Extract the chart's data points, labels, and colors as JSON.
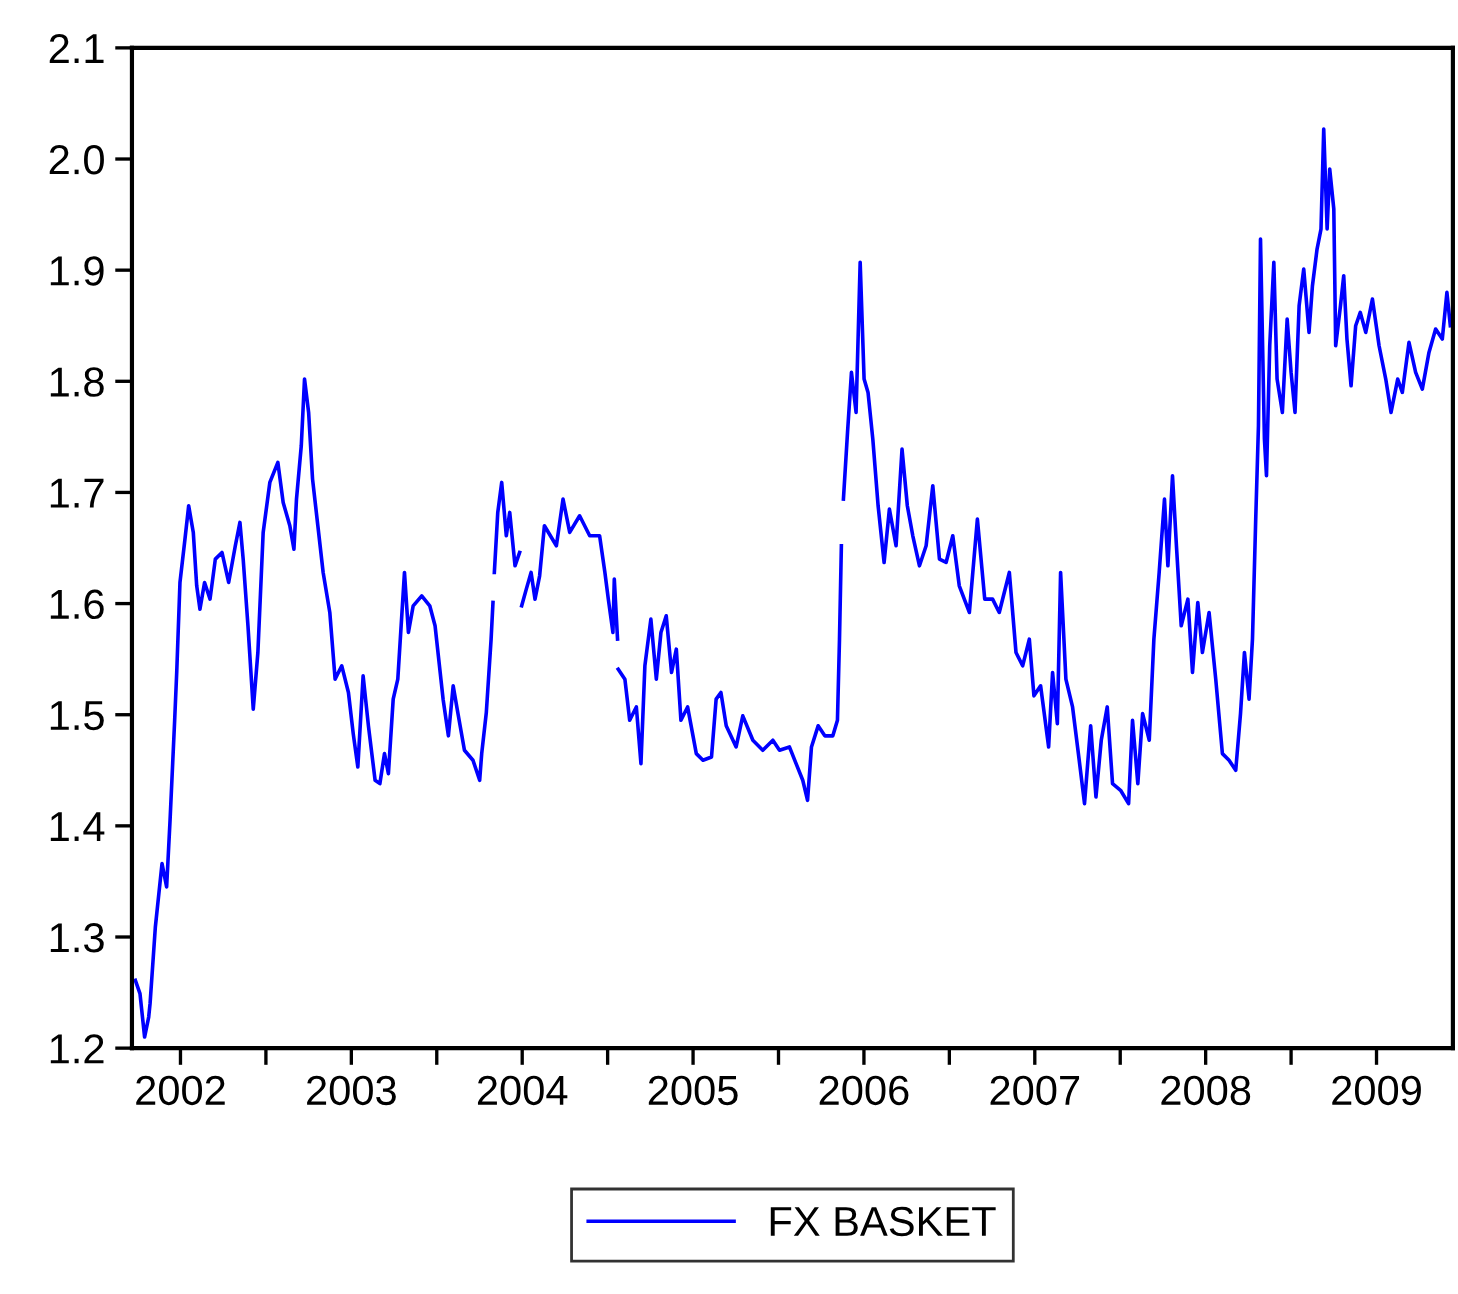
{
  "chart_data": {
    "type": "line",
    "series": [
      {
        "name": "FX BASKET",
        "color": "#0000ff",
        "x": [
          2002.236,
          2002.263,
          2002.29,
          2002.314,
          2002.322,
          2002.353,
          2002.392,
          2002.419,
          2002.439,
          2002.466,
          2002.478,
          2002.497,
          2002.524,
          2002.548,
          2002.575,
          2002.595,
          2002.614,
          2002.641,
          2002.673,
          2002.704,
          2002.743,
          2002.782,
          2002.821,
          2002.848,
          2002.867,
          2002.895,
          2002.926,
          2002.953,
          2002.984,
          2003.023,
          2003.07,
          2003.101,
          2003.14,
          2003.164,
          2003.179,
          2003.207,
          2003.226,
          2003.25,
          2003.273,
          2003.304,
          2003.335,
          2003.374,
          2003.405,
          2003.444,
          2003.483,
          2003.511,
          2003.538,
          2003.569,
          2003.6,
          2003.639,
          2003.667,
          2003.694,
          2003.717,
          2003.745,
          2003.772,
          2003.811,
          2003.834,
          2003.862,
          2003.912,
          2003.959,
          2003.99,
          2004.037,
          2004.068,
          2004.096,
          2004.123,
          2004.162,
          2004.212,
          2004.251,
          2004.263,
          2004.29,
          2004.318,
          2004.329,
          2004.333,
          2004.337,
          2004.357,
          2004.38,
          2004.407,
          2004.427,
          2004.458,
          2004.485,
          2004.491,
          2004.497,
          2004.524,
          2004.552,
          2004.575,
          2004.602,
          2004.63,
          2004.7,
          2004.739,
          2004.778,
          2004.836,
          2004.895,
          2004.953,
          2004.984,
          2005.004,
          2005.031,
          2005.039,
          2005.058,
          2005.06,
          2005.062,
          2005.101,
          2005.129,
          2005.168,
          2005.195,
          2005.218,
          2005.253,
          2005.285,
          2005.312,
          2005.343,
          2005.374,
          2005.402,
          2005.429,
          2005.468,
          2005.519,
          2005.558,
          2005.608,
          2005.635,
          2005.663,
          2005.694,
          2005.752,
          2005.791,
          2005.85,
          2005.908,
          2005.967,
          2006.006,
          2006.064,
          2006.103,
          2006.142,
          2006.17,
          2006.193,
          2006.232,
          2006.271,
          2006.318,
          2006.345,
          2006.357,
          2006.368,
          2006.374,
          2006.38,
          2006.404,
          2006.427,
          2006.454,
          2006.478,
          2006.501,
          2006.524,
          2006.552,
          2006.583,
          2006.618,
          2006.649,
          2006.688,
          2006.723,
          2006.754,
          2006.786,
          2006.825,
          2006.864,
          2006.903,
          2006.942,
          2006.981,
          2007.02,
          2007.058,
          2007.117,
          2007.164,
          2007.207,
          2007.253,
          2007.292,
          2007.351,
          2007.39,
          2007.429,
          2007.468,
          2007.495,
          2007.534,
          2007.581,
          2007.604,
          2007.632,
          2007.651,
          2007.682,
          2007.721,
          2007.76,
          2007.791,
          2007.827,
          2007.858,
          2007.889,
          2007.924,
          2007.955,
          2008.002,
          2008.049,
          2008.072,
          2008.103,
          2008.131,
          2008.17,
          2008.197,
          2008.228,
          2008.259,
          2008.279,
          2008.306,
          2008.329,
          2008.357,
          2008.396,
          2008.423,
          2008.454,
          2008.481,
          2008.52,
          2008.559,
          2008.598,
          2008.637,
          2008.676,
          2008.704,
          2008.727,
          2008.754,
          2008.774,
          2008.793,
          2008.809,
          2008.821,
          2008.844,
          2008.856,
          2008.875,
          2008.899,
          2008.918,
          2008.949,
          2008.977,
          2009.0,
          2009.023,
          2009.047,
          2009.074,
          2009.105,
          2009.125,
          2009.152,
          2009.175,
          2009.191,
          2009.211,
          2009.226,
          2009.25,
          2009.261,
          2009.289,
          2009.308,
          2009.327,
          2009.351,
          2009.378,
          2009.405,
          2009.437,
          2009.476,
          2009.515,
          2009.554,
          2009.585,
          2009.624,
          2009.651,
          2009.69,
          2009.729,
          2009.768,
          2009.807,
          2009.846,
          2009.885,
          2009.912,
          2009.932
        ],
        "values": [
          1.261,
          1.249,
          1.21,
          1.228,
          1.24,
          1.309,
          1.366,
          1.345,
          1.405,
          1.495,
          1.538,
          1.619,
          1.655,
          1.688,
          1.664,
          1.616,
          1.595,
          1.619,
          1.604,
          1.64,
          1.646,
          1.619,
          1.652,
          1.673,
          1.64,
          1.58,
          1.505,
          1.556,
          1.664,
          1.709,
          1.727,
          1.691,
          1.67,
          1.649,
          1.694,
          1.742,
          1.802,
          1.772,
          1.712,
          1.67,
          1.628,
          1.592,
          1.532,
          1.544,
          1.52,
          1.483,
          1.453,
          1.535,
          1.49,
          1.441,
          1.438,
          1.465,
          1.447,
          1.514,
          1.532,
          1.628,
          1.574,
          1.598,
          1.607,
          1.598,
          1.58,
          1.514,
          1.481,
          1.526,
          1.502,
          1.468,
          1.459,
          1.441,
          1.465,
          1.502,
          1.568,
          1.601,
          null,
          1.628,
          1.682,
          1.709,
          1.661,
          1.682,
          1.634,
          1.646,
          null,
          1.598,
          1.613,
          1.628,
          1.604,
          1.625,
          1.67,
          1.652,
          1.694,
          1.664,
          1.679,
          1.661,
          1.661,
          1.628,
          1.604,
          1.574,
          1.622,
          1.568,
          null,
          1.541,
          1.532,
          1.495,
          1.507,
          1.456,
          1.544,
          1.586,
          1.532,
          1.574,
          1.589,
          1.538,
          1.559,
          1.495,
          1.507,
          1.465,
          1.459,
          1.462,
          1.514,
          1.52,
          1.49,
          1.471,
          1.499,
          1.477,
          1.468,
          1.477,
          1.468,
          1.471,
          1.456,
          1.441,
          1.423,
          1.471,
          1.49,
          1.481,
          1.481,
          1.495,
          1.568,
          1.652,
          null,
          1.694,
          1.754,
          1.808,
          1.772,
          1.907,
          1.802,
          1.79,
          1.748,
          1.688,
          1.637,
          1.685,
          1.652,
          1.739,
          1.688,
          1.661,
          1.634,
          1.652,
          1.706,
          1.64,
          1.637,
          1.661,
          1.616,
          1.592,
          1.676,
          1.604,
          1.604,
          1.592,
          1.628,
          1.556,
          1.544,
          1.568,
          1.517,
          1.526,
          1.471,
          1.538,
          1.492,
          1.628,
          1.532,
          1.507,
          1.459,
          1.42,
          1.49,
          1.426,
          1.477,
          1.507,
          1.438,
          1.432,
          1.42,
          1.495,
          1.438,
          1.501,
          1.477,
          1.568,
          1.628,
          1.694,
          1.634,
          1.715,
          1.652,
          1.58,
          1.604,
          1.538,
          1.601,
          1.556,
          1.592,
          1.532,
          1.465,
          1.459,
          1.45,
          1.501,
          1.556,
          1.514,
          1.568,
          1.676,
          1.76,
          1.928,
          1.748,
          1.715,
          1.832,
          1.907,
          1.802,
          1.772,
          1.856,
          1.808,
          1.772,
          1.868,
          1.901,
          1.844,
          1.886,
          1.919,
          1.937,
          2.027,
          1.937,
          1.991,
          1.955,
          1.832,
          1.868,
          1.895,
          1.838,
          1.796,
          1.85,
          1.862,
          1.844,
          1.874,
          1.832,
          1.802,
          1.772,
          1.802,
          1.79,
          1.835,
          1.808,
          1.793,
          1.826,
          1.847,
          1.838,
          1.88,
          1.85
        ]
      }
    ],
    "xlim": [
      2002.216,
      2009.947
    ],
    "xticks": [
      {
        "value": 2002.5,
        "label": "2002"
      },
      {
        "value": 2003,
        "label": null
      },
      {
        "value": 2003.5,
        "label": "2003"
      },
      {
        "value": 2004,
        "label": null
      },
      {
        "value": 2004.5,
        "label": "2004"
      },
      {
        "value": 2005,
        "label": null
      },
      {
        "value": 2005.5,
        "label": "2005"
      },
      {
        "value": 2006,
        "label": null
      },
      {
        "value": 2006.5,
        "label": "2006"
      },
      {
        "value": 2007,
        "label": null
      },
      {
        "value": 2007.5,
        "label": "2007"
      },
      {
        "value": 2008,
        "label": null
      },
      {
        "value": 2008.5,
        "label": "2008"
      },
      {
        "value": 2009,
        "label": null
      },
      {
        "value": 2009.5,
        "label": "2009"
      }
    ],
    "ylim": [
      1.2,
      2.1
    ],
    "yticks": [
      {
        "value": 1.2,
        "label": "1.2"
      },
      {
        "value": 1.3,
        "label": "1.3"
      },
      {
        "value": 1.4,
        "label": "1.4"
      },
      {
        "value": 1.5,
        "label": "1.5"
      },
      {
        "value": 1.6,
        "label": "1.6"
      },
      {
        "value": 1.7,
        "label": "1.7"
      },
      {
        "value": 1.8,
        "label": "1.8"
      },
      {
        "value": 1.9,
        "label": "1.9"
      },
      {
        "value": 2.0,
        "label": "2.0"
      },
      {
        "value": 2.1,
        "label": "2.1"
      }
    ],
    "legend": "bottom",
    "grid": false,
    "marker": "none",
    "line_style": "solid"
  }
}
